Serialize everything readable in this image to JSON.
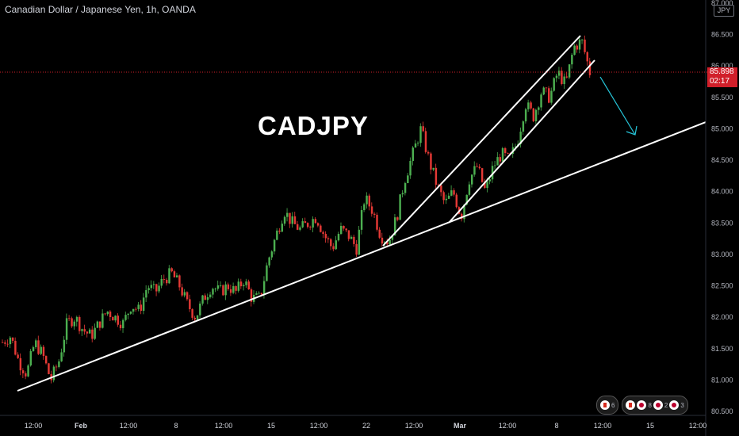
{
  "header": {
    "symbol_title": "Canadian Dollar / Japanese Yen, 1h, OANDA",
    "currency_badge": "JPY"
  },
  "annotation": {
    "label": "CADJPY"
  },
  "price_tag": {
    "price": "85.898",
    "countdown": "02:17",
    "color": "#d11f2a"
  },
  "price_axis": {
    "labels": [
      "87.000",
      "86.500",
      "86.000",
      "85.500",
      "85.000",
      "84.500",
      "84.000",
      "83.500",
      "83.000",
      "82.500",
      "82.000",
      "81.500",
      "81.000",
      "80.500"
    ]
  },
  "time_axis": {
    "labels": [
      "12:00",
      "Feb",
      "12:00",
      "8",
      "12:00",
      "15",
      "12:00",
      "22",
      "12:00",
      "Mar",
      "12:00",
      "8",
      "12:00",
      "15",
      "12:00"
    ]
  },
  "events": [
    {
      "flag": "ca",
      "count": "6"
    },
    {
      "flag": "ca",
      "count": ""
    },
    {
      "flag": "jp",
      "count": "8"
    },
    {
      "flag": "jp",
      "count": "2"
    },
    {
      "flag": "jp",
      "count": "3"
    }
  ],
  "colors": {
    "up": "#26a69a",
    "down": "#ef5350",
    "candle_green": "#4caf50",
    "candle_red": "#e53935",
    "trendline": "#ffffff",
    "arrow": "#26c6da",
    "price_line": "#d11f2a"
  },
  "chart_data": {
    "type": "candlestick",
    "symbol": "CADJPY",
    "interval": "1h",
    "ylim": [
      80.5,
      87.0
    ],
    "last_price": 85.898,
    "close_path": [
      81.6,
      81.7,
      81.3,
      81.1,
      81.6,
      81.4,
      81.0,
      81.3,
      81.9,
      82.0,
      81.8,
      81.7,
      81.9,
      82.1,
      82.0,
      81.9,
      82.2,
      82.1,
      82.5,
      82.4,
      82.6,
      82.7,
      82.5,
      82.2,
      82.0,
      82.3,
      82.5,
      82.4,
      82.5,
      82.4,
      82.6,
      82.3,
      82.3,
      82.9,
      83.3,
      83.7,
      83.5,
      83.4,
      83.5,
      83.6,
      83.3,
      83.1,
      83.4,
      83.3,
      83.1,
      83.9,
      83.7,
      83.3,
      83.2,
      83.6,
      84.2,
      84.6,
      85.0,
      84.5,
      84.1,
      83.8,
      84.0,
      83.6,
      84.2,
      84.4,
      84.0,
      84.4,
      84.6,
      84.5,
      84.8,
      85.4,
      85.2,
      85.6,
      85.5,
      85.9,
      85.7,
      86.3,
      86.4,
      85.9
    ]
  }
}
